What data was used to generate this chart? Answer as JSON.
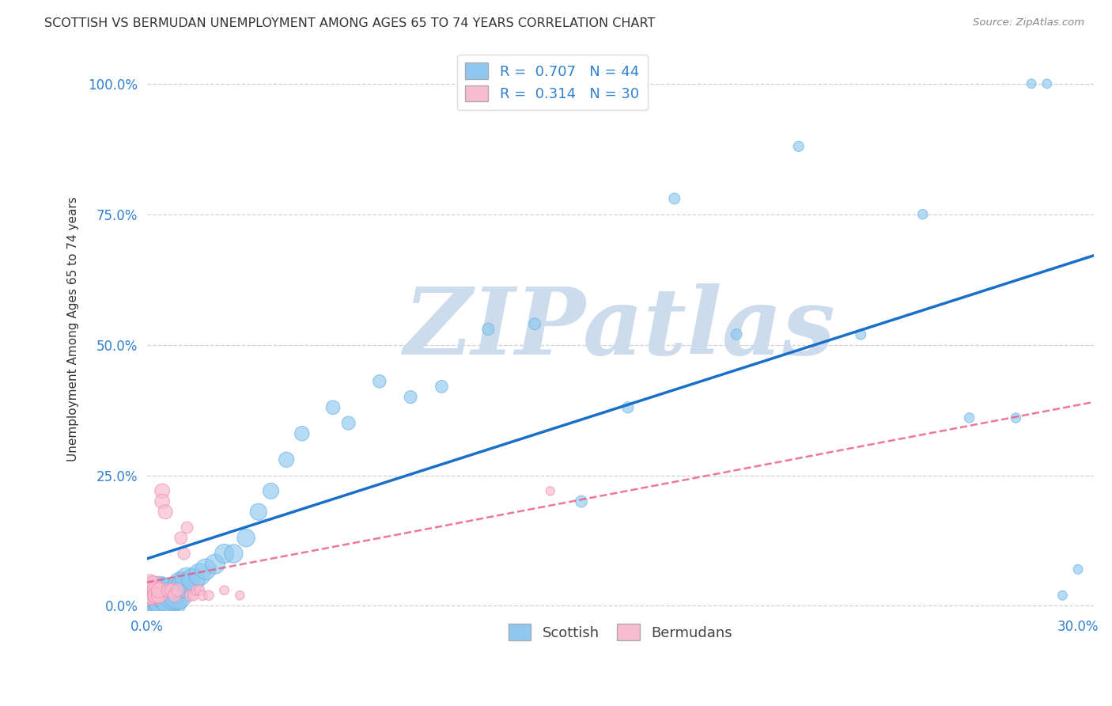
{
  "title": "SCOTTISH VS BERMUDAN UNEMPLOYMENT AMONG AGES 65 TO 74 YEARS CORRELATION CHART",
  "source": "Source: ZipAtlas.com",
  "ylabel": "Unemployment Among Ages 65 to 74 years",
  "xlim": [
    0.0,
    0.305
  ],
  "ylim": [
    -0.01,
    1.07
  ],
  "xticks": [
    0.0,
    0.3
  ],
  "xticklabels": [
    "0.0%",
    "30.0%"
  ],
  "yticks": [
    0.0,
    0.25,
    0.5,
    0.75,
    1.0
  ],
  "yticklabels": [
    "0.0%",
    "25.0%",
    "50.0%",
    "75.0%",
    "100.0%"
  ],
  "scottish_x": [
    0.002,
    0.003,
    0.004,
    0.004,
    0.005,
    0.006,
    0.007,
    0.008,
    0.009,
    0.01,
    0.011,
    0.012,
    0.013,
    0.015,
    0.017,
    0.019,
    0.022,
    0.025,
    0.028,
    0.032,
    0.036,
    0.04,
    0.045,
    0.05,
    0.06,
    0.065,
    0.075,
    0.085,
    0.095,
    0.11,
    0.125,
    0.14,
    0.155,
    0.17,
    0.19,
    0.21,
    0.23,
    0.25,
    0.265,
    0.28,
    0.285,
    0.29,
    0.295,
    0.3
  ],
  "scottish_y": [
    0.01,
    0.01,
    0.02,
    0.01,
    0.02,
    0.01,
    0.02,
    0.01,
    0.02,
    0.02,
    0.04,
    0.04,
    0.05,
    0.05,
    0.06,
    0.07,
    0.08,
    0.1,
    0.1,
    0.13,
    0.18,
    0.22,
    0.28,
    0.33,
    0.38,
    0.35,
    0.43,
    0.4,
    0.42,
    0.53,
    0.54,
    0.2,
    0.38,
    0.78,
    0.52,
    0.88,
    0.52,
    0.75,
    0.36,
    0.36,
    1.0,
    1.0,
    0.02,
    0.07
  ],
  "scottish_sizes": [
    400,
    350,
    300,
    280,
    260,
    240,
    220,
    200,
    180,
    160,
    140,
    130,
    120,
    110,
    100,
    90,
    80,
    75,
    70,
    65,
    58,
    52,
    48,
    44,
    40,
    38,
    35,
    33,
    32,
    30,
    28,
    28,
    26,
    25,
    24,
    22,
    22,
    20,
    20,
    20,
    18,
    18,
    18,
    18
  ],
  "bermuda_x": [
    0.001,
    0.001,
    0.001,
    0.002,
    0.002,
    0.002,
    0.003,
    0.003,
    0.003,
    0.004,
    0.004,
    0.005,
    0.005,
    0.006,
    0.007,
    0.008,
    0.009,
    0.01,
    0.011,
    0.012,
    0.013,
    0.014,
    0.015,
    0.016,
    0.017,
    0.018,
    0.02,
    0.025,
    0.03,
    0.13
  ],
  "bermuda_y": [
    0.03,
    0.04,
    0.02,
    0.03,
    0.02,
    0.04,
    0.03,
    0.02,
    0.02,
    0.02,
    0.03,
    0.22,
    0.2,
    0.18,
    0.03,
    0.03,
    0.02,
    0.03,
    0.13,
    0.1,
    0.15,
    0.02,
    0.02,
    0.03,
    0.03,
    0.02,
    0.02,
    0.03,
    0.02,
    0.22
  ],
  "bermuda_sizes": [
    100,
    90,
    80,
    75,
    70,
    65,
    60,
    55,
    55,
    50,
    50,
    45,
    45,
    42,
    40,
    38,
    36,
    34,
    32,
    30,
    28,
    26,
    24,
    23,
    22,
    21,
    20,
    18,
    17,
    16
  ],
  "scottish_color": "#8ec8f0",
  "scottish_edge_color": "#6ab0e0",
  "bermuda_color": "#f8bcd0",
  "bermuda_edge_color": "#f090b0",
  "blue_line_color": "#1a70c8",
  "pink_line_color": "#e85880",
  "tick_label_color": "#3080d0",
  "scottish_R": "0.707",
  "scottish_N": 44,
  "bermuda_R": "0.314",
  "bermuda_N": 30,
  "watermark_text": "ZIPatlas",
  "watermark_color": "#ccdcec",
  "background_color": "#ffffff",
  "grid_color": "#cccccc",
  "title_fontsize": 11.5,
  "axis_label_fontsize": 11,
  "tick_fontsize": 12,
  "legend_fontsize": 13
}
